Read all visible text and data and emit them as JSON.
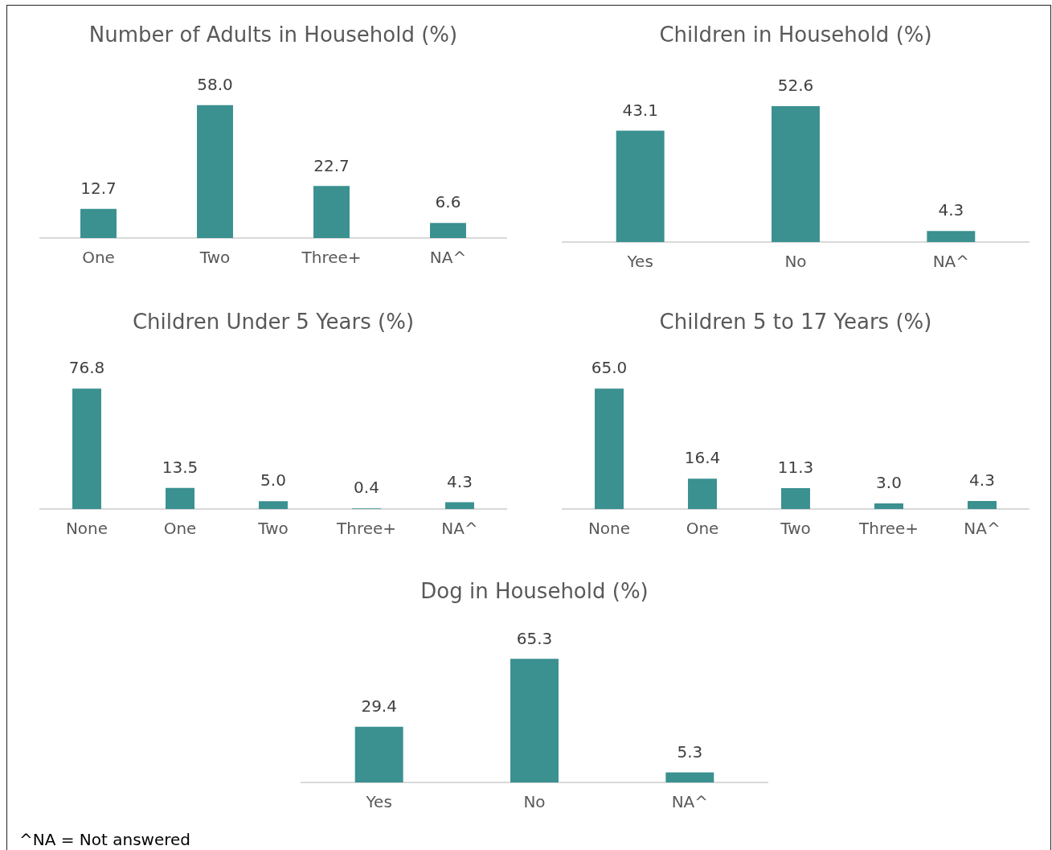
{
  "chart_data": [
    {
      "type": "bar",
      "title": "Number of Adults in Household (%)",
      "categories": [
        "One",
        "Two",
        "Three+",
        "NA^"
      ],
      "values": [
        12.7,
        58.0,
        22.7,
        6.6
      ],
      "value_labels": [
        "12.7",
        "58.0",
        "22.7",
        "6.6"
      ],
      "color": "#3b9090",
      "tick_labels": "x"
    },
    {
      "type": "bar",
      "title": "Children in Household (%)",
      "categories": [
        "Yes",
        "No",
        "NA^"
      ],
      "values": [
        43.1,
        52.6,
        4.3
      ],
      "value_labels": [
        "43.1",
        "52.6",
        "4.3"
      ],
      "color": "#3b9090",
      "tick_labels": "x"
    },
    {
      "type": "bar",
      "title": "Children Under 5 Years (%)",
      "categories": [
        "None",
        "One",
        "Two",
        "Three+",
        "NA^"
      ],
      "values": [
        76.8,
        13.5,
        5.0,
        0.4,
        4.3
      ],
      "value_labels": [
        "76.8",
        "13.5",
        "5.0",
        "0.4",
        "4.3"
      ],
      "color": "#3b9090",
      "tick_labels": "x"
    },
    {
      "type": "bar",
      "title": "Children 5 to 17 Years (%)",
      "categories": [
        "None",
        "One",
        "Two",
        "Three+",
        "NA^"
      ],
      "values": [
        65.0,
        16.4,
        11.3,
        3.0,
        4.3
      ],
      "value_labels": [
        "65.0",
        "16.4",
        "11.3",
        "3.0",
        "4.3"
      ],
      "color": "#3b9090",
      "tick_labels": "x"
    },
    {
      "type": "bar",
      "title": "Dog in Household (%)",
      "categories": [
        "Yes",
        "No",
        "NA^"
      ],
      "values": [
        29.4,
        65.3,
        5.3
      ],
      "value_labels": [
        "29.4",
        "65.3",
        "5.3"
      ],
      "color": "#3b9090",
      "tick_labels": "x",
      "annotations": [
        "^NA = Not answered"
      ]
    }
  ]
}
